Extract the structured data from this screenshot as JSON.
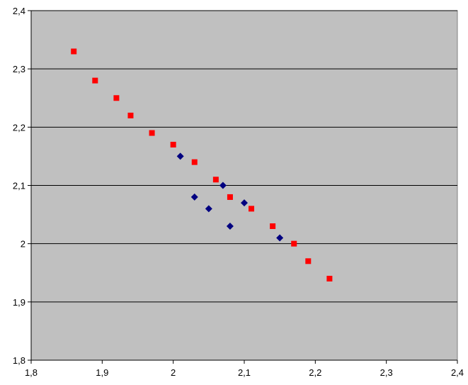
{
  "chart_data": {
    "type": "scatter",
    "xlim": [
      1.8,
      2.4
    ],
    "xticks": [
      {
        "value": 1.8,
        "label": "1,8"
      },
      {
        "value": 1.9,
        "label": "1,9"
      },
      2,
      {
        "value": 2.1,
        "label": "2,1"
      },
      {
        "value": 2.2,
        "label": "2,2"
      },
      {
        "value": 2.3,
        "label": "2,3"
      },
      {
        "value": 2.4,
        "label": "2,4"
      }
    ],
    "ylim": [
      1.8,
      2.4
    ],
    "yticks": [
      {
        "value": 1.8,
        "label": "1,8"
      },
      {
        "value": 1.9,
        "label": "1,9"
      },
      2,
      {
        "value": 2.1,
        "label": "2,1"
      },
      {
        "value": 2.2,
        "label": "2,2"
      },
      {
        "value": 2.3,
        "label": "2,3"
      },
      {
        "value": 2.4,
        "label": "2,4"
      }
    ],
    "grid": true,
    "plot_background": "#c0c0c0",
    "series": [
      {
        "color": "#ff0000",
        "marker": "square",
        "x": [
          1.86,
          1.89,
          1.92,
          1.94,
          1.97,
          2.0,
          2.03,
          2.06,
          2.08,
          2.11,
          2.14,
          2.17,
          2.19,
          2.22
        ],
        "values": [
          2.33,
          2.28,
          2.25,
          2.22,
          2.19,
          2.17,
          2.14,
          2.11,
          2.08,
          2.06,
          2.03,
          2.0,
          1.97,
          1.94
        ]
      },
      {
        "color": "#000080",
        "marker": "diamond",
        "x": [
          2.01,
          2.03,
          2.05,
          2.07,
          2.08,
          2.1,
          2.15
        ],
        "values": [
          2.15,
          2.08,
          2.06,
          2.1,
          2.03,
          2.07,
          2.01
        ]
      }
    ]
  }
}
